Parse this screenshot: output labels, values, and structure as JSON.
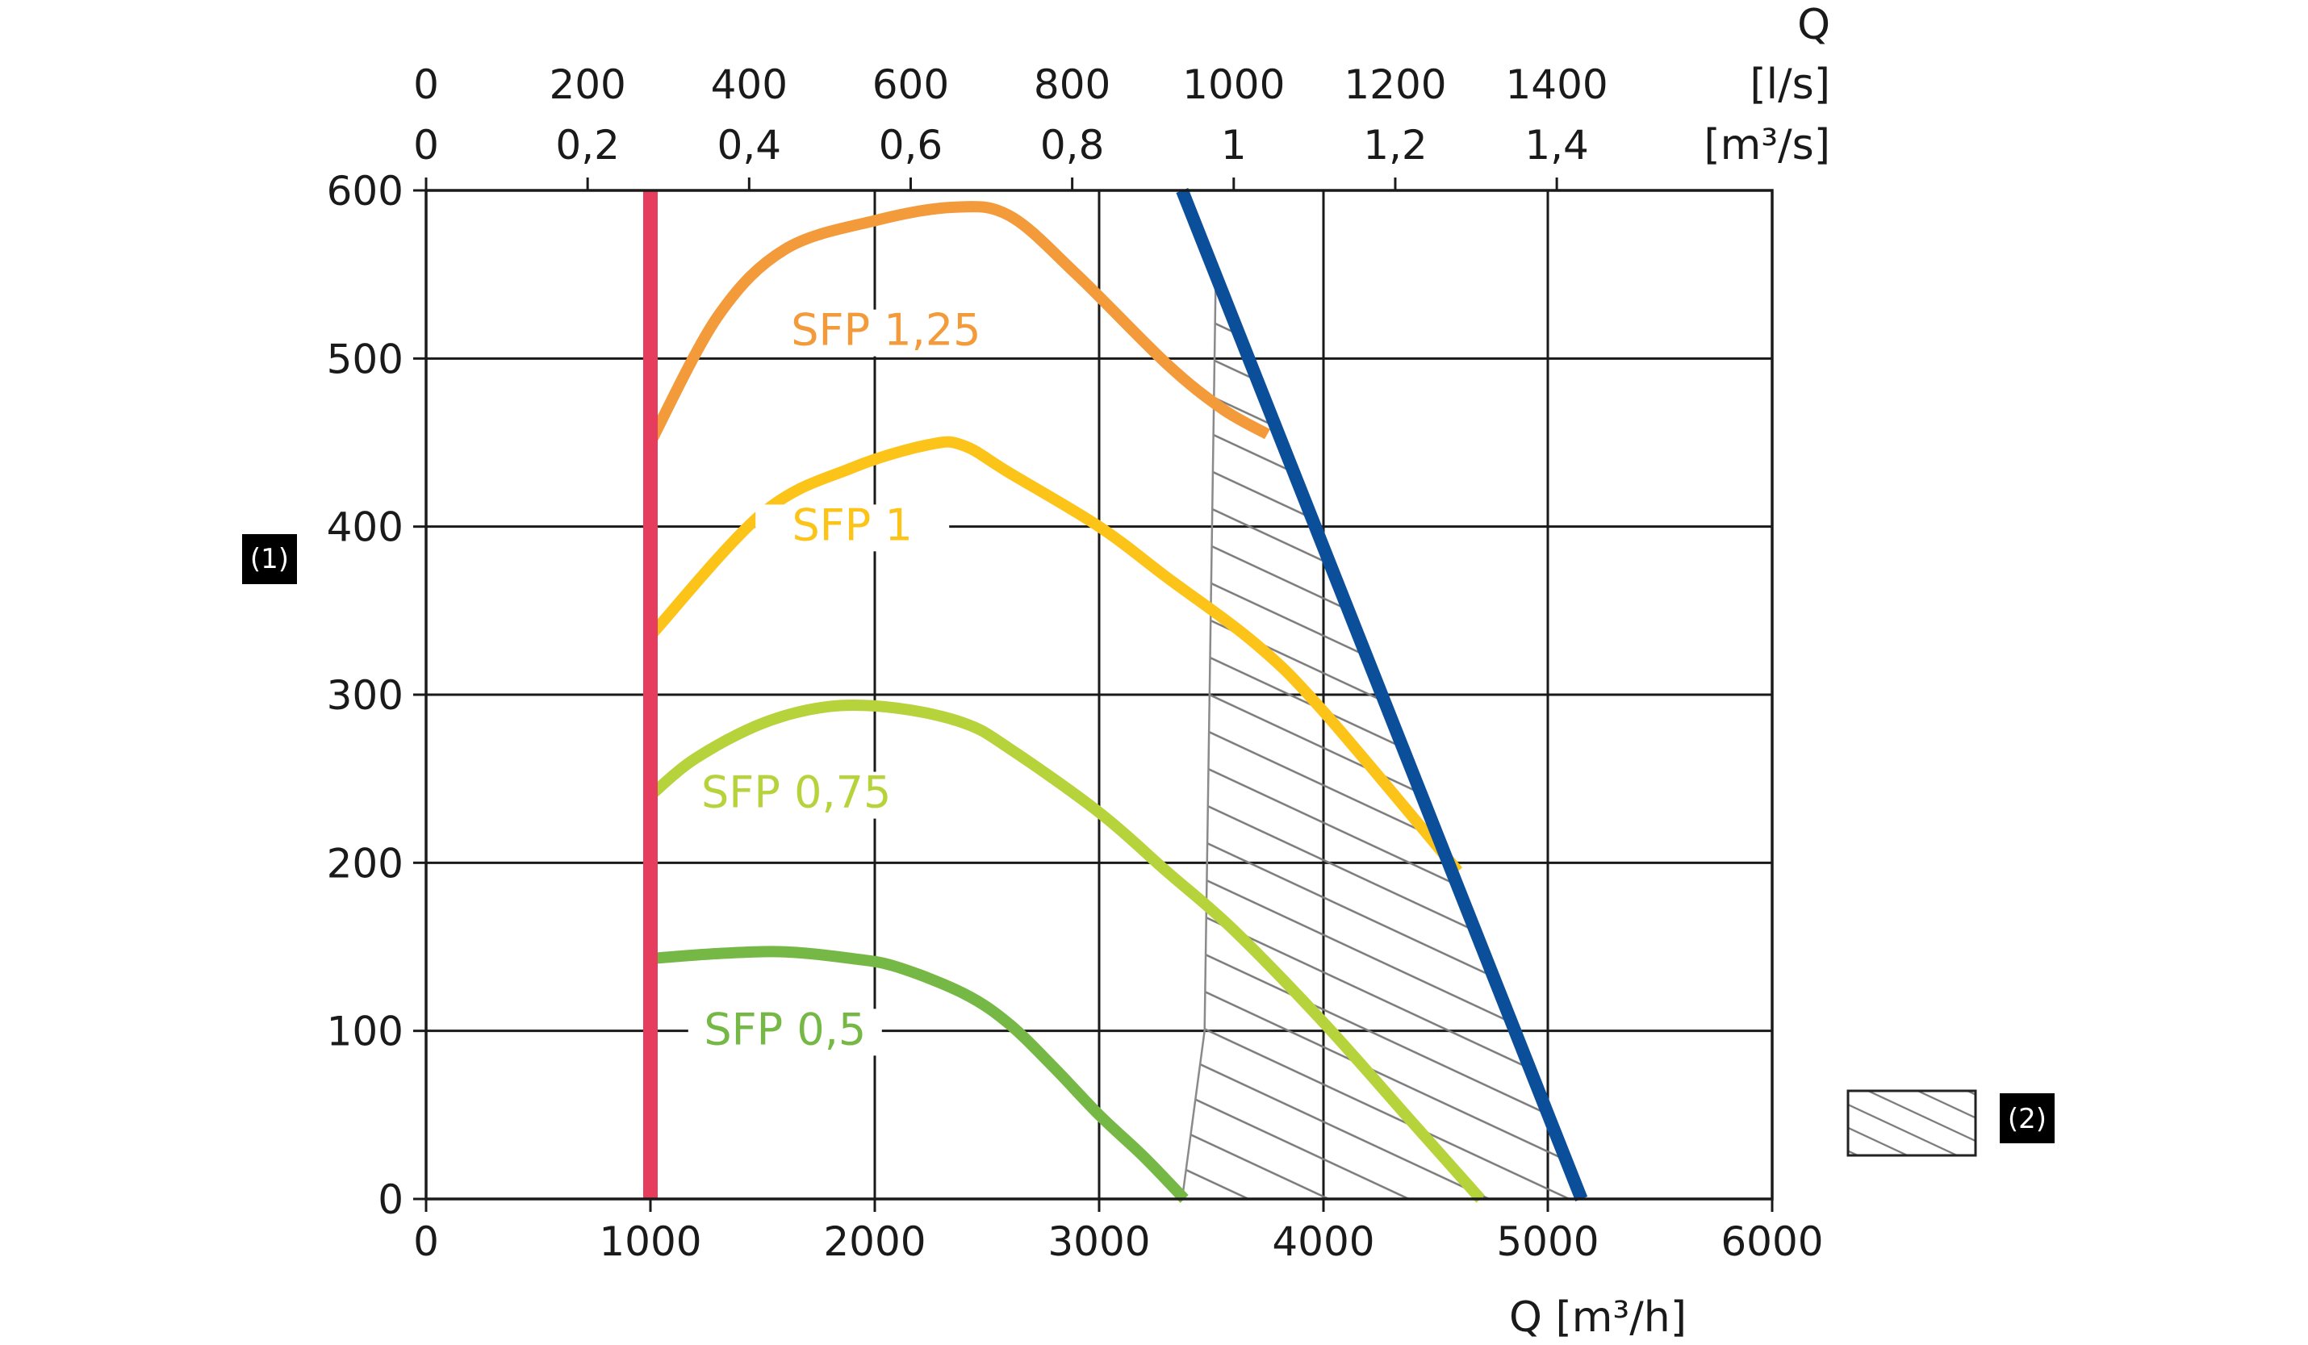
{
  "chart_data": {
    "type": "line",
    "x_axis": {
      "label": "Q [m³/h]",
      "range": [
        0,
        6000
      ],
      "ticks": [
        0,
        1000,
        2000,
        3000,
        4000,
        5000,
        6000
      ],
      "tick_labels": [
        "0",
        "1000",
        "2000",
        "3000",
        "4000",
        "5000",
        "6000"
      ]
    },
    "y_axis": {
      "label": "(1)",
      "range": [
        0,
        600
      ],
      "ticks": [
        0,
        100,
        200,
        300,
        400,
        500,
        600
      ],
      "tick_labels": [
        "0",
        "100",
        "200",
        "300",
        "400",
        "500",
        "600"
      ]
    },
    "top_axis_ls": {
      "title": "Q",
      "unit": "[l/s]",
      "values": [
        0,
        200,
        400,
        600,
        800,
        1000,
        1200,
        1400
      ],
      "tick_labels": [
        "0",
        "200",
        "400",
        "600",
        "800",
        "1000",
        "1200",
        "1400"
      ]
    },
    "top_axis_m3s": {
      "unit": "[m³/s]",
      "values": [
        0,
        0.2,
        0.4,
        0.6,
        0.8,
        1.0,
        1.2,
        1.4
      ],
      "tick_labels": [
        "0",
        "0,2",
        "0,4",
        "0,6",
        "0,8",
        "1",
        "1,2",
        "1,4"
      ]
    },
    "grid": true,
    "series": [
      {
        "name": "SFP 1,25",
        "color": "#f39a3a",
        "points": [
          [
            1000,
            450
          ],
          [
            1300,
            525
          ],
          [
            1600,
            565
          ],
          [
            2000,
            582
          ],
          [
            2350,
            590
          ],
          [
            2600,
            585
          ],
          [
            2900,
            550
          ],
          [
            3300,
            497
          ],
          [
            3550,
            470
          ],
          [
            3750,
            455
          ]
        ]
      },
      {
        "name": "SFP 1",
        "color": "#fcc419",
        "points": [
          [
            1000,
            335
          ],
          [
            1500,
            408
          ],
          [
            1900,
            435
          ],
          [
            2250,
            449
          ],
          [
            2400,
            448
          ],
          [
            2600,
            432
          ],
          [
            3000,
            400
          ],
          [
            3300,
            370
          ],
          [
            3700,
            330
          ],
          [
            4000,
            290
          ],
          [
            4600,
            195
          ]
        ]
      },
      {
        "name": "SFP 0,75",
        "color": "#b7d33c",
        "points": [
          [
            1000,
            240
          ],
          [
            1200,
            262
          ],
          [
            1500,
            283
          ],
          [
            1800,
            293
          ],
          [
            2100,
            292
          ],
          [
            2400,
            283
          ],
          [
            2600,
            268
          ],
          [
            3000,
            230
          ],
          [
            3300,
            195
          ],
          [
            3600,
            160
          ],
          [
            4000,
            105
          ],
          [
            4400,
            45
          ],
          [
            4700,
            0
          ]
        ]
      },
      {
        "name": "SFP 0,5",
        "color": "#76b845",
        "points": [
          [
            1000,
            143
          ],
          [
            1300,
            146
          ],
          [
            1600,
            147
          ],
          [
            1900,
            143
          ],
          [
            2100,
            138
          ],
          [
            2400,
            122
          ],
          [
            2600,
            104
          ],
          [
            2800,
            78
          ],
          [
            3000,
            50
          ],
          [
            3200,
            25
          ],
          [
            3380,
            0
          ]
        ]
      }
    ],
    "min_limit": {
      "name": "minimum airflow",
      "color": "#e63c5e",
      "x": 1000
    },
    "max_limit": {
      "name": "maximum line",
      "color": "#0b4f9b",
      "points": [
        [
          3370,
          600
        ],
        [
          5150,
          0
        ]
      ]
    },
    "hatched_region": {
      "legend_label": "(2)",
      "color": "#8a8a8a",
      "polygon": [
        [
          3520,
          550
        ],
        [
          3470,
          100
        ],
        [
          3370,
          0
        ],
        [
          5150,
          0
        ],
        [
          3520,
          550
        ]
      ]
    },
    "curve_labels": [
      {
        "text": "SFP 1,25",
        "x": 2050,
        "y": 508
      },
      {
        "text": "SFP 1",
        "x": 1900,
        "y": 392
      },
      {
        "text": "SFP 0,75",
        "x": 1650,
        "y": 233
      },
      {
        "text": "SFP 0,5",
        "x": 1600,
        "y": 92
      }
    ]
  }
}
